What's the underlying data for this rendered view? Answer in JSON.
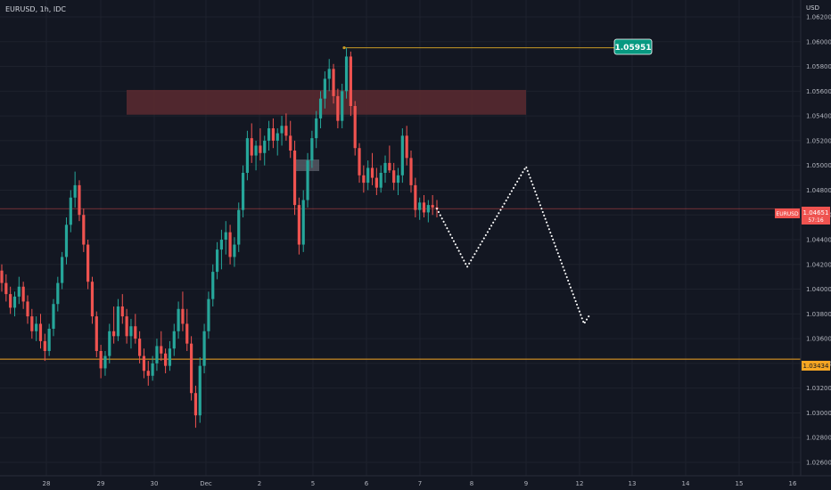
{
  "header": {
    "symbol_label": "EURUSD, 1h, IDC",
    "currency": "USD"
  },
  "colors": {
    "background": "#131722",
    "grid": "#1e222d",
    "up_candle": "#26a69a",
    "down_candle": "#ef5350",
    "resistance_zone": "#5c2a30",
    "support_line": "#f5a623",
    "high_line": "#c79a24",
    "current_price": "#ef5350",
    "badge_green": "#089981",
    "projection": "#ffffff"
  },
  "price_axis": {
    "labels": [
      "1.06200",
      "1.06000",
      "1.05800",
      "1.05600",
      "1.05400",
      "1.05200",
      "1.05000",
      "1.04800",
      "1.04600",
      "1.04400",
      "1.04200",
      "1.04000",
      "1.03800",
      "1.03600",
      "1.03400",
      "1.03200",
      "1.03000",
      "1.02800",
      "1.02600"
    ]
  },
  "time_axis": {
    "labels": [
      "28",
      "29",
      "30",
      "Dec",
      "2",
      "5",
      "6",
      "7",
      "8",
      "9",
      "12",
      "13",
      "14",
      "15",
      "16"
    ]
  },
  "badges": {
    "high_price": "1.05951",
    "current_symbol": "EURUSD",
    "current_price": "1.04651",
    "countdown": "57:16",
    "support_price": "1.03434"
  },
  "chart_data": {
    "type": "candlestick",
    "symbol": "EURUSD",
    "timeframe": "1h",
    "ylim": [
      1.0255,
      1.0625
    ],
    "marked_high": 1.05951,
    "current_price": 1.04651,
    "support_level": 1.03434,
    "resistance_zone": [
      1.0541,
      1.0561
    ],
    "projection_path": [
      {
        "date": "7",
        "price": 1.0465
      },
      {
        "date": "8",
        "price": 1.0418
      },
      {
        "date": "9",
        "price": 1.0499
      },
      {
        "date": "12",
        "price": 1.0372
      },
      {
        "date": "12",
        "price": 1.038
      }
    ],
    "candles": [
      [
        1.0415,
        1.042,
        1.0398,
        1.0405
      ],
      [
        1.0405,
        1.0412,
        1.039,
        1.0396
      ],
      [
        1.0396,
        1.0402,
        1.038,
        1.0385
      ],
      [
        1.0385,
        1.0398,
        1.0378,
        1.0394
      ],
      [
        1.0394,
        1.041,
        1.0388,
        1.0402
      ],
      [
        1.0402,
        1.0406,
        1.0384,
        1.039
      ],
      [
        1.039,
        1.0395,
        1.0372,
        1.0378
      ],
      [
        1.0378,
        1.0384,
        1.036,
        1.0366
      ],
      [
        1.0366,
        1.0378,
        1.0358,
        1.0372
      ],
      [
        1.0372,
        1.038,
        1.0352,
        1.0358
      ],
      [
        1.0358,
        1.0364,
        1.0342,
        1.035
      ],
      [
        1.035,
        1.0372,
        1.0346,
        1.0368
      ],
      [
        1.0368,
        1.0392,
        1.0362,
        1.0388
      ],
      [
        1.0388,
        1.041,
        1.0382,
        1.0405
      ],
      [
        1.0405,
        1.043,
        1.04,
        1.0426
      ],
      [
        1.0426,
        1.0458,
        1.042,
        1.0452
      ],
      [
        1.0452,
        1.048,
        1.0446,
        1.0474
      ],
      [
        1.0474,
        1.0495,
        1.0466,
        1.0484
      ],
      [
        1.0484,
        1.0488,
        1.0455,
        1.046
      ],
      [
        1.046,
        1.0465,
        1.043,
        1.0436
      ],
      [
        1.0436,
        1.044,
        1.04,
        1.0406
      ],
      [
        1.0406,
        1.041,
        1.0372,
        1.0378
      ],
      [
        1.0378,
        1.0382,
        1.0345,
        1.035
      ],
      [
        1.035,
        1.0355,
        1.0328,
        1.0336
      ],
      [
        1.0336,
        1.035,
        1.033,
        1.0346
      ],
      [
        1.0346,
        1.0372,
        1.034,
        1.0366
      ],
      [
        1.0366,
        1.0386,
        1.0356,
        1.0362
      ],
      [
        1.0362,
        1.0392,
        1.0358,
        1.0386
      ],
      [
        1.0386,
        1.0396,
        1.0372,
        1.0378
      ],
      [
        1.0378,
        1.0384,
        1.0356,
        1.0362
      ],
      [
        1.0362,
        1.0376,
        1.0352,
        1.037
      ],
      [
        1.037,
        1.038,
        1.0356,
        1.036
      ],
      [
        1.036,
        1.0366,
        1.034,
        1.0346
      ],
      [
        1.0346,
        1.0352,
        1.0328,
        1.0334
      ],
      [
        1.0334,
        1.0342,
        1.0322,
        1.033
      ],
      [
        1.033,
        1.0346,
        1.0326,
        1.034
      ],
      [
        1.034,
        1.036,
        1.0334,
        1.0354
      ],
      [
        1.0354,
        1.0366,
        1.0342,
        1.0348
      ],
      [
        1.0348,
        1.0352,
        1.0332,
        1.0338
      ],
      [
        1.0338,
        1.0358,
        1.0334,
        1.0352
      ],
      [
        1.0352,
        1.0372,
        1.0346,
        1.0366
      ],
      [
        1.0366,
        1.039,
        1.036,
        1.0384
      ],
      [
        1.0384,
        1.0398,
        1.0366,
        1.0372
      ],
      [
        1.0372,
        1.0384,
        1.035,
        1.0356
      ],
      [
        1.0356,
        1.0362,
        1.031,
        1.0316
      ],
      [
        1.0316,
        1.0322,
        1.0288,
        1.0298
      ],
      [
        1.0298,
        1.0345,
        1.0292,
        1.0338
      ],
      [
        1.0338,
        1.0372,
        1.0332,
        1.0366
      ],
      [
        1.0366,
        1.0398,
        1.036,
        1.0392
      ],
      [
        1.0392,
        1.042,
        1.0386,
        1.0414
      ],
      [
        1.0414,
        1.0438,
        1.0408,
        1.0432
      ],
      [
        1.0432,
        1.0448,
        1.0416,
        1.044
      ],
      [
        1.044,
        1.0455,
        1.0428,
        1.0446
      ],
      [
        1.0446,
        1.0452,
        1.042,
        1.0426
      ],
      [
        1.0426,
        1.0442,
        1.0418,
        1.0436
      ],
      [
        1.0436,
        1.047,
        1.043,
        1.0464
      ],
      [
        1.0464,
        1.05,
        1.0458,
        1.0494
      ],
      [
        1.0494,
        1.0528,
        1.0488,
        1.0522
      ],
      [
        1.0522,
        1.0534,
        1.0502,
        1.0508
      ],
      [
        1.0508,
        1.052,
        1.0496,
        1.0516
      ],
      [
        1.0516,
        1.053,
        1.0504,
        1.051
      ],
      [
        1.051,
        1.0524,
        1.05,
        1.052
      ],
      [
        1.052,
        1.0536,
        1.0512,
        1.053
      ],
      [
        1.053,
        1.0538,
        1.0514,
        1.052
      ],
      [
        1.052,
        1.053,
        1.0508,
        1.0526
      ],
      [
        1.0526,
        1.054,
        1.0516,
        1.0532
      ],
      [
        1.0532,
        1.0542,
        1.052,
        1.0524
      ],
      [
        1.0524,
        1.0536,
        1.0506,
        1.0512
      ],
      [
        1.0512,
        1.052,
        1.046,
        1.0468
      ],
      [
        1.0468,
        1.0474,
        1.0428,
        1.0436
      ],
      [
        1.0436,
        1.048,
        1.043,
        1.0472
      ],
      [
        1.0472,
        1.051,
        1.0466,
        1.0504
      ],
      [
        1.0504,
        1.0528,
        1.0498,
        1.0522
      ],
      [
        1.0522,
        1.0544,
        1.0514,
        1.0538
      ],
      [
        1.0538,
        1.056,
        1.053,
        1.0554
      ],
      [
        1.0554,
        1.0576,
        1.0546,
        1.057
      ],
      [
        1.057,
        1.0586,
        1.056,
        1.0578
      ],
      [
        1.0578,
        1.0582,
        1.055,
        1.0556
      ],
      [
        1.0556,
        1.0562,
        1.053,
        1.0536
      ],
      [
        1.0536,
        1.0566,
        1.053,
        1.056
      ],
      [
        1.056,
        1.0595,
        1.0554,
        1.0588
      ],
      [
        1.0588,
        1.0592,
        1.054,
        1.0548
      ],
      [
        1.0548,
        1.0552,
        1.0508,
        1.0514
      ],
      [
        1.0514,
        1.0518,
        1.0486,
        1.0492
      ],
      [
        1.0492,
        1.05,
        1.0478,
        1.0486
      ],
      [
        1.0486,
        1.0504,
        1.048,
        1.0498
      ],
      [
        1.0498,
        1.051,
        1.0484,
        1.049
      ],
      [
        1.049,
        1.0498,
        1.0476,
        1.0482
      ],
      [
        1.0482,
        1.05,
        1.0478,
        1.0494
      ],
      [
        1.0494,
        1.0508,
        1.0486,
        1.0502
      ],
      [
        1.0502,
        1.0516,
        1.0494,
        1.0496
      ],
      [
        1.0496,
        1.0502,
        1.048,
        1.0486
      ],
      [
        1.0486,
        1.0498,
        1.0476,
        1.0492
      ],
      [
        1.0492,
        1.053,
        1.0486,
        1.0524
      ],
      [
        1.0524,
        1.0532,
        1.05,
        1.0506
      ],
      [
        1.0506,
        1.0512,
        1.0478,
        1.0484
      ],
      [
        1.0484,
        1.049,
        1.0458,
        1.0464
      ],
      [
        1.0464,
        1.0474,
        1.0456,
        1.047
      ],
      [
        1.047,
        1.0476,
        1.0458,
        1.0462
      ],
      [
        1.0462,
        1.0472,
        1.0454,
        1.0468
      ],
      [
        1.0468,
        1.0476,
        1.046,
        1.0466
      ],
      [
        1.0466,
        1.0472,
        1.0458,
        1.0465
      ]
    ]
  }
}
